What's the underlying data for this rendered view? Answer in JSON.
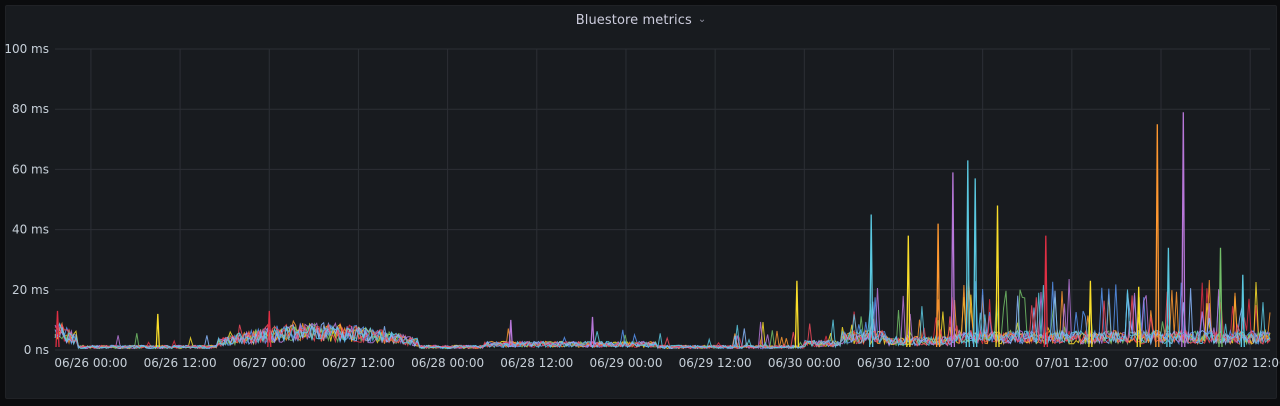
{
  "panel": {
    "title": "Bluestore metrics",
    "menu_icon": "chevron-down-icon"
  },
  "chart_data": {
    "type": "line",
    "title": "Bluestore metrics",
    "xlabel": "",
    "ylabel": "",
    "grid": true,
    "x_ticks": [
      "06/26 00:00",
      "06/26 12:00",
      "06/27 00:00",
      "06/27 12:00",
      "06/28 00:00",
      "06/28 12:00",
      "06/29 00:00",
      "06/29 12:00",
      "06/30 00:00",
      "06/30 12:00",
      "07/01 00:00",
      "07/01 12:00",
      "07/02 00:00",
      "07/02 12:00"
    ],
    "y_ticks": [
      "0 ns",
      "20 ms",
      "40 ms",
      "60 ms",
      "80 ms",
      "100 ms"
    ],
    "ylim_ms": [
      0,
      100
    ],
    "xlim": [
      "06/25 19:10",
      "07/02 14:40"
    ],
    "series_colors": [
      "#e02f44",
      "#fade2a",
      "#ff9830",
      "#73bf69",
      "#5794f2",
      "#b877d9",
      "#8ab8ff",
      "#f2495c",
      "#5ac8e0"
    ],
    "annotated_spikes": [
      {
        "x": "06/25 19:30",
        "y_ms": 13,
        "color": "#e02f44"
      },
      {
        "x": "06/26 09:00",
        "y_ms": 12,
        "color": "#fade2a"
      },
      {
        "x": "06/27 00:00",
        "y_ms": 13,
        "color": "#e02f44"
      },
      {
        "x": "06/28 08:30",
        "y_ms": 10,
        "color": "#b877d9"
      },
      {
        "x": "06/28 19:30",
        "y_ms": 11,
        "color": "#b877d9"
      },
      {
        "x": "06/29 23:00",
        "y_ms": 23,
        "color": "#fade2a"
      },
      {
        "x": "06/30 09:00",
        "y_ms": 45,
        "color": "#5ac8e0"
      },
      {
        "x": "06/30 14:00",
        "y_ms": 38,
        "color": "#fade2a"
      },
      {
        "x": "06/30 18:00",
        "y_ms": 42,
        "color": "#ff9830"
      },
      {
        "x": "06/30 20:00",
        "y_ms": 59,
        "color": "#b877d9"
      },
      {
        "x": "06/30 22:00",
        "y_ms": 63,
        "color": "#5ac8e0"
      },
      {
        "x": "06/30 23:00",
        "y_ms": 57,
        "color": "#5ac8e0"
      },
      {
        "x": "07/01 02:00",
        "y_ms": 48,
        "color": "#fade2a"
      },
      {
        "x": "07/01 08:30",
        "y_ms": 38,
        "color": "#e02f44"
      },
      {
        "x": "07/01 14:30",
        "y_ms": 23,
        "color": "#fade2a"
      },
      {
        "x": "07/01 21:00",
        "y_ms": 21,
        "color": "#fade2a"
      },
      {
        "x": "07/01 23:30",
        "y_ms": 75,
        "color": "#ff9830"
      },
      {
        "x": "07/02 01:00",
        "y_ms": 34,
        "color": "#5ac8e0"
      },
      {
        "x": "07/02 03:00",
        "y_ms": 79,
        "color": "#b877d9"
      },
      {
        "x": "07/02 08:00",
        "y_ms": 34,
        "color": "#73bf69"
      },
      {
        "x": "07/02 11:00",
        "y_ms": 25,
        "color": "#5ac8e0"
      }
    ]
  }
}
